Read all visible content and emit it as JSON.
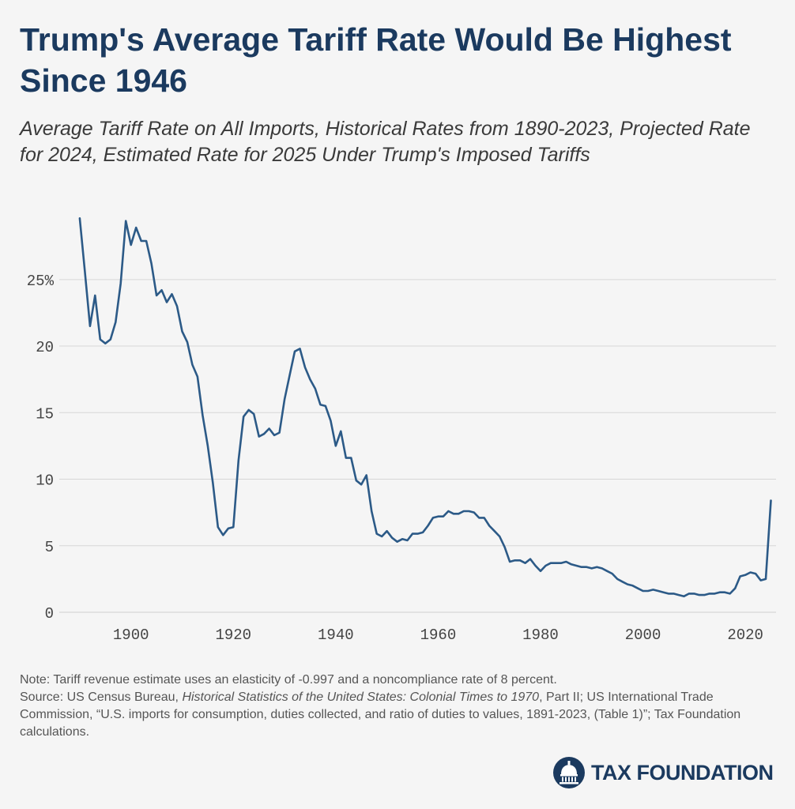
{
  "title": "Trump's Average Tariff Rate Would Be Highest Since 1946",
  "subtitle": "Average Tariff Rate on All Imports, Historical Rates from 1890-2023, Projected Rate for 2024, Estimated Rate for 2025 Under Trump's Imposed Tariffs",
  "notes": {
    "note": "Note: Tariff revenue estimate uses an elasticity of -0.997 and a noncompliance rate of 8 percent.",
    "source_prefix": "Source: US Census Bureau, ",
    "source_book": "Historical Statistics of the United States: Colonial Times to 1970",
    "source_rest": ", Part II; US International Trade Commission, “U.S. imports for consumption, duties collected, and ratio of duties to values, 1891-2023, (Table 1)”; Tax Foundation calculations."
  },
  "brand": {
    "name": "TAX FOUNDATION",
    "icon": "capitol-dome-icon"
  },
  "colors": {
    "line": "#2c5a87",
    "title": "#1b3a5f",
    "grid": "#d6d6d6"
  },
  "chart_data": {
    "type": "line",
    "xlim": [
      1886,
      2026
    ],
    "ylim": [
      0,
      29.5
    ],
    "x_ticks": [
      1900,
      1920,
      1940,
      1960,
      1980,
      2000,
      2020
    ],
    "y_ticks": [
      0,
      5,
      10,
      15,
      20,
      25
    ],
    "y_tick_labels": [
      "0",
      "5",
      "10",
      "15",
      "20",
      "25%"
    ],
    "grid": "horizontal",
    "series": [
      {
        "x": [
          1890,
          1891,
          1892,
          1893,
          1894,
          1895,
          1896,
          1897,
          1898,
          1899,
          1900,
          1901,
          1902,
          1903,
          1904,
          1905,
          1906,
          1907,
          1908,
          1909,
          1910,
          1911,
          1912,
          1913,
          1914,
          1915,
          1916,
          1917,
          1918,
          1919,
          1920,
          1921,
          1922,
          1923,
          1924,
          1925,
          1926,
          1927,
          1928,
          1929,
          1930,
          1931,
          1932,
          1933,
          1934,
          1935,
          1936,
          1937,
          1938,
          1939,
          1940,
          1941,
          1942,
          1943,
          1944,
          1945,
          1946,
          1947,
          1948,
          1949,
          1950,
          1951,
          1952,
          1953,
          1954,
          1955,
          1956,
          1957,
          1958,
          1959,
          1960,
          1961,
          1962,
          1963,
          1964,
          1965,
          1966,
          1967,
          1968,
          1969,
          1970,
          1971,
          1972,
          1973,
          1974,
          1975,
          1976,
          1977,
          1978,
          1979,
          1980,
          1981,
          1982,
          1983,
          1984,
          1985,
          1986,
          1987,
          1988,
          1989,
          1990,
          1991,
          1992,
          1993,
          1994,
          1995,
          1996,
          1997,
          1998,
          1999,
          2000,
          2001,
          2002,
          2003,
          2004,
          2005,
          2006,
          2007,
          2008,
          2009,
          2010,
          2011,
          2012,
          2013,
          2014,
          2015,
          2016,
          2017,
          2018,
          2019,
          2020,
          2021,
          2022,
          2023,
          2024,
          2025
        ],
        "y": [
          29.6,
          25.6,
          21.5,
          23.8,
          20.5,
          20.2,
          20.5,
          21.8,
          24.7,
          29.4,
          27.6,
          28.9,
          27.9,
          27.9,
          26.2,
          23.8,
          24.2,
          23.3,
          23.9,
          23.0,
          21.1,
          20.3,
          18.6,
          17.7,
          14.8,
          12.5,
          9.7,
          6.4,
          5.8,
          6.3,
          6.4,
          11.4,
          14.7,
          15.2,
          14.9,
          13.2,
          13.4,
          13.8,
          13.3,
          13.5,
          16.0,
          17.8,
          19.6,
          19.8,
          18.4,
          17.5,
          16.8,
          15.6,
          15.5,
          14.4,
          12.5,
          13.6,
          11.6,
          11.6,
          9.9,
          9.6,
          10.3,
          7.6,
          5.9,
          5.7,
          6.1,
          5.6,
          5.3,
          5.5,
          5.4,
          5.9,
          5.9,
          6.0,
          6.5,
          7.1,
          7.2,
          7.2,
          7.6,
          7.4,
          7.4,
          7.6,
          7.6,
          7.5,
          7.1,
          7.1,
          6.5,
          6.1,
          5.7,
          4.9,
          3.8,
          3.9,
          3.9,
          3.7,
          4.0,
          3.5,
          3.1,
          3.5,
          3.7,
          3.7,
          3.7,
          3.8,
          3.6,
          3.5,
          3.4,
          3.4,
          3.3,
          3.4,
          3.3,
          3.1,
          2.9,
          2.5,
          2.3,
          2.1,
          2.0,
          1.8,
          1.6,
          1.6,
          1.7,
          1.6,
          1.5,
          1.4,
          1.4,
          1.3,
          1.2,
          1.4,
          1.4,
          1.3,
          1.3,
          1.4,
          1.4,
          1.5,
          1.5,
          1.4,
          1.8,
          2.7,
          2.8,
          3.0,
          2.9,
          2.4,
          2.5,
          8.4
        ]
      }
    ]
  }
}
